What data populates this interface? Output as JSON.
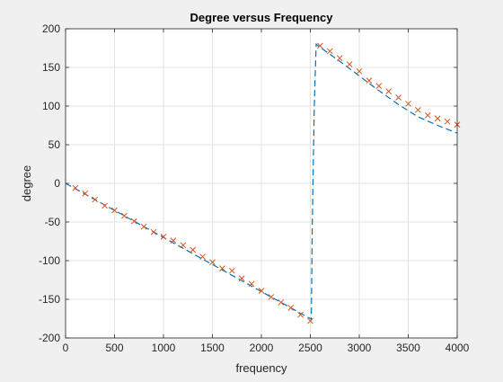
{
  "chart_data": {
    "type": "line",
    "title": "Degree versus Frequency",
    "xlabel": "frequency",
    "ylabel": "degree",
    "xlim": [
      0,
      4000
    ],
    "ylim": [
      -200,
      200
    ],
    "xticks": [
      0,
      500,
      1000,
      1500,
      2000,
      2500,
      3000,
      3500,
      4000
    ],
    "yticks": [
      -200,
      -150,
      -100,
      -50,
      0,
      50,
      100,
      150,
      200
    ],
    "grid": true,
    "series": [
      {
        "style": "dashed-line",
        "color": "#0072bd",
        "x": [
          0,
          200,
          400,
          600,
          800,
          1000,
          1200,
          1400,
          1600,
          1800,
          2000,
          2200,
          2400,
          2500,
          2510,
          2520,
          2540,
          2560,
          2600,
          2800,
          3000,
          3200,
          3400,
          3600,
          3800,
          4000
        ],
        "y": [
          0,
          -14,
          -28,
          -42,
          -56,
          -70,
          -84,
          -98,
          -112,
          -126,
          -140,
          -154,
          -168,
          -175,
          -176,
          -50,
          100,
          180,
          176,
          158,
          139,
          120,
          102,
          86,
          75,
          65
        ]
      },
      {
        "style": "x-markers",
        "color": "#d95319",
        "x": [
          100,
          200,
          300,
          400,
          500,
          600,
          700,
          800,
          900,
          1000,
          1100,
          1200,
          1300,
          1400,
          1500,
          1600,
          1700,
          1800,
          1900,
          2000,
          2100,
          2200,
          2300,
          2400,
          2500,
          2600,
          2700,
          2800,
          2900,
          3000,
          3100,
          3200,
          3300,
          3400,
          3500,
          3600,
          3700,
          3800,
          3900,
          4000
        ],
        "y": [
          -6,
          -13,
          -21,
          -29,
          -35,
          -42,
          -49,
          -56,
          -63,
          -69,
          -74,
          -80,
          -86,
          -95,
          -102,
          -110,
          -113,
          -123,
          -130,
          -139,
          -147,
          -154,
          -161,
          -170,
          -178,
          178,
          171,
          162,
          154,
          145,
          133,
          126,
          119,
          111,
          103,
          95,
          88,
          84,
          80,
          76
        ]
      }
    ]
  }
}
